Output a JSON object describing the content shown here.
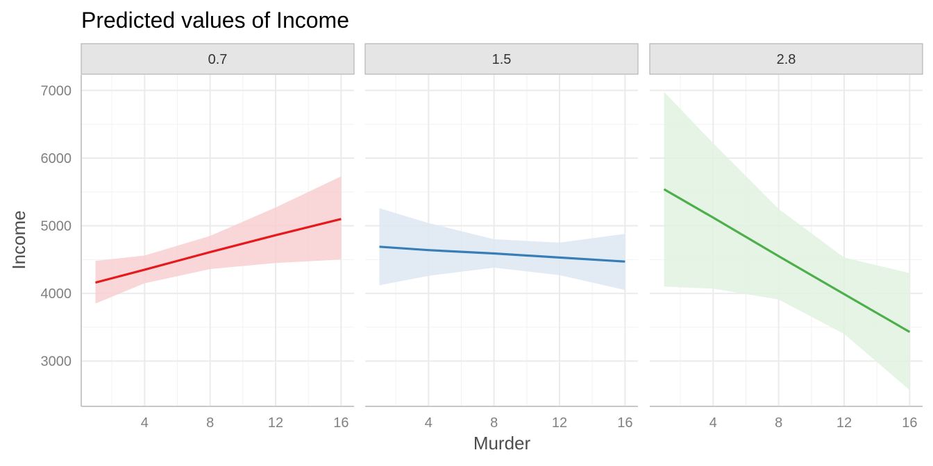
{
  "chart_data": {
    "type": "line",
    "title": "Predicted values of Income",
    "xlabel": "Murder",
    "ylabel": "Income",
    "xlim": [
      0.13,
      16.79
    ],
    "ylim": [
      2330,
      7230
    ],
    "x_ticks": [
      4,
      8,
      12,
      16
    ],
    "y_ticks": [
      3000,
      4000,
      5000,
      6000,
      7000
    ],
    "x_minor": [
      2,
      6,
      10,
      14
    ],
    "y_minor": [
      3500,
      4500,
      5500,
      6500
    ],
    "grid": true,
    "panels": [
      {
        "label": "0.7",
        "color": "#e41a1c",
        "ribbon_color": "#f8cfd0",
        "x": [
          1.0,
          4.0,
          8.0,
          12.0,
          16.0
        ],
        "y": [
          4160,
          4350,
          4610,
          4860,
          5100
        ],
        "lower": [
          3850,
          4150,
          4360,
          4450,
          4500
        ],
        "upper": [
          4480,
          4560,
          4850,
          5270,
          5730
        ]
      },
      {
        "label": "1.5",
        "color": "#377eb8",
        "ribbon_color": "#dde8f2",
        "x": [
          1.0,
          4.0,
          8.0,
          12.0,
          16.0
        ],
        "y": [
          4690,
          4640,
          4590,
          4530,
          4470
        ],
        "lower": [
          4120,
          4260,
          4380,
          4270,
          4050
        ],
        "upper": [
          5260,
          5040,
          4800,
          4750,
          4880
        ]
      },
      {
        "label": "2.8",
        "color": "#4daf4a",
        "ribbon_color": "#e2f2e1",
        "x": [
          1.0,
          4.0,
          8.0,
          12.0,
          16.0
        ],
        "y": [
          5540,
          5120,
          4550,
          3990,
          3430
        ],
        "lower": [
          4100,
          4070,
          3910,
          3400,
          2570
        ],
        "upper": [
          6980,
          6220,
          5250,
          4530,
          4300
        ]
      }
    ]
  }
}
